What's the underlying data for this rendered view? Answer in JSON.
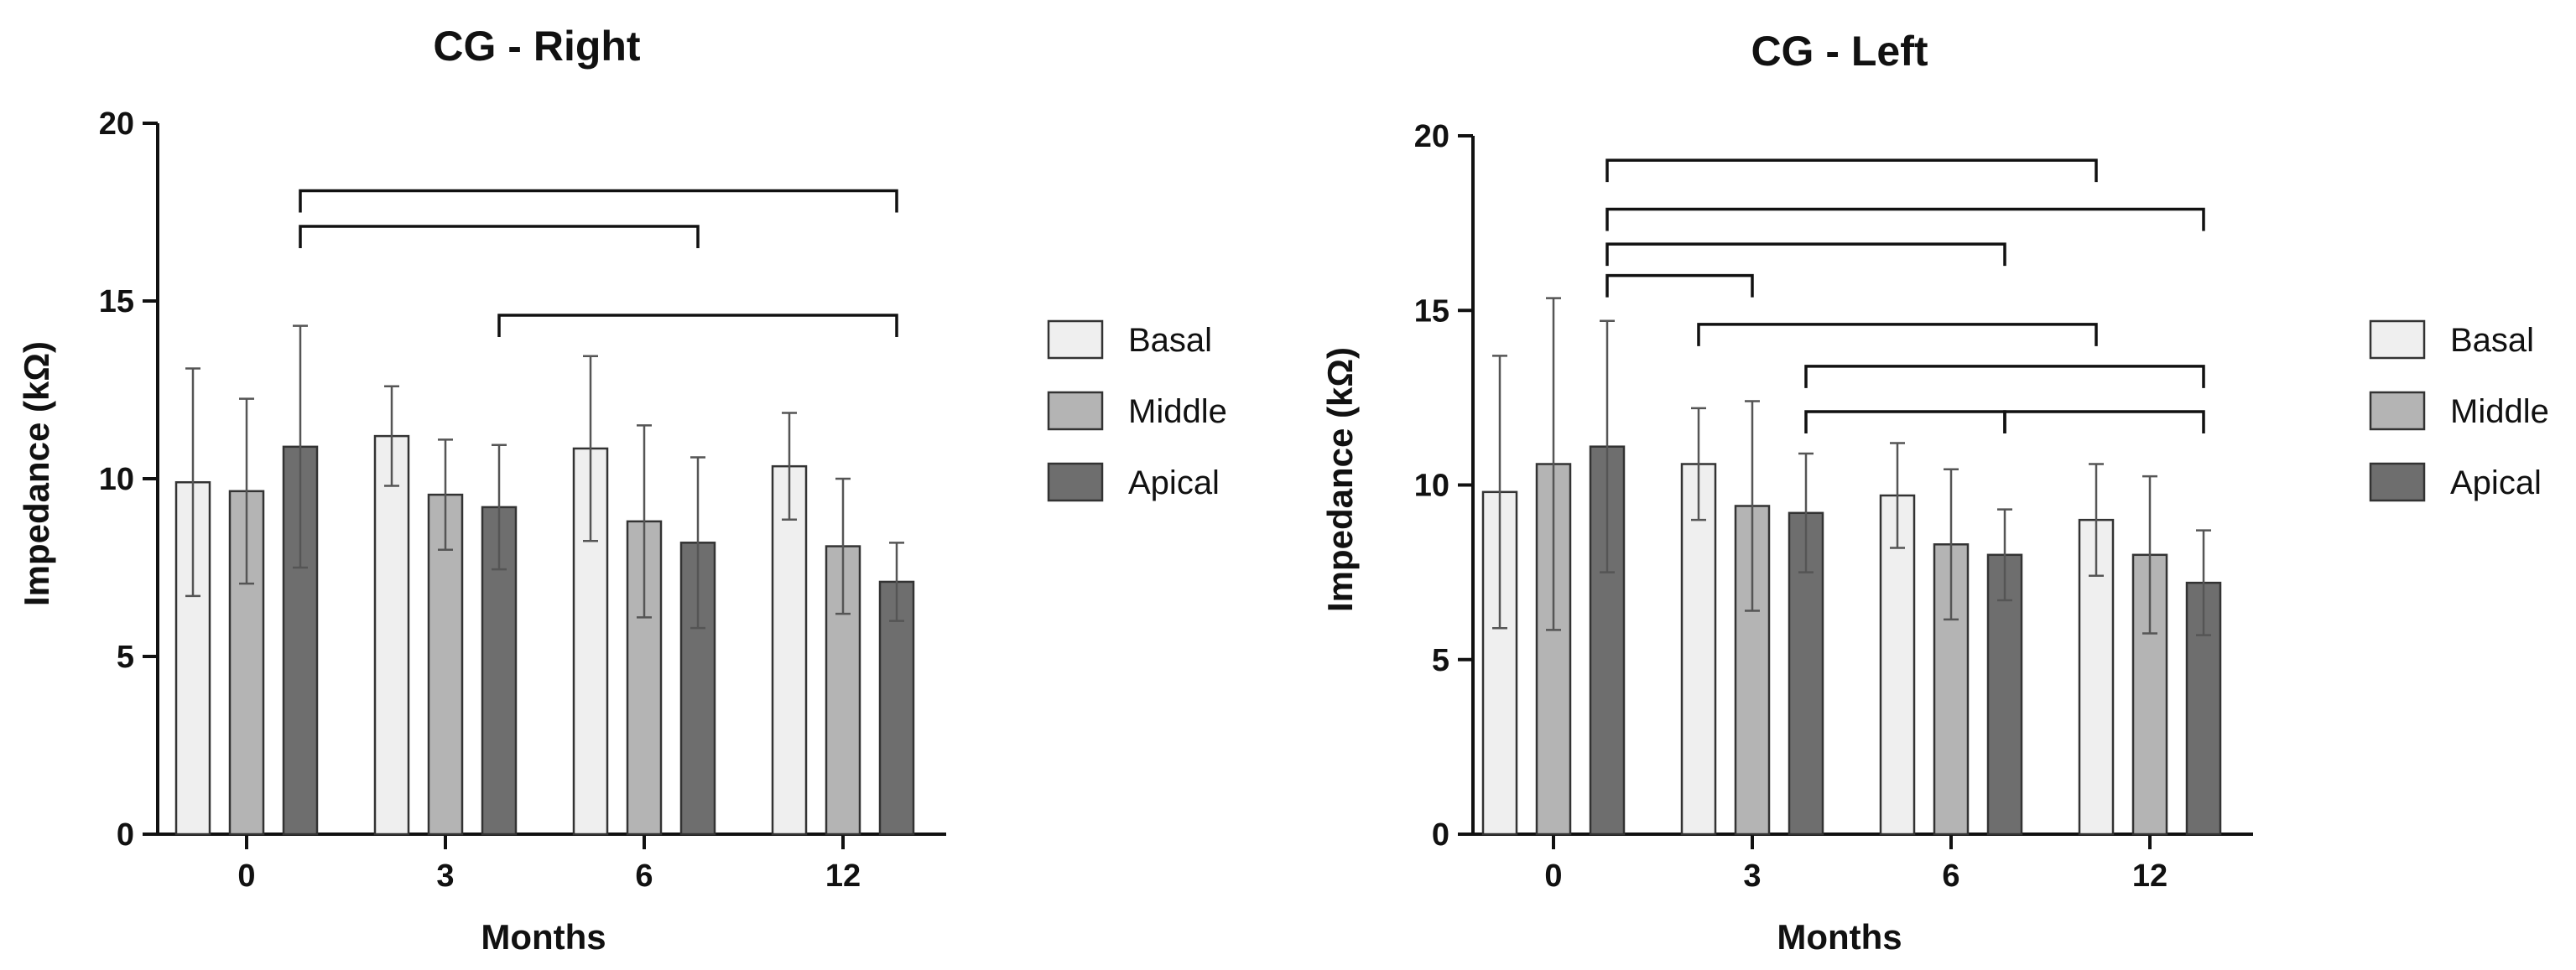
{
  "chart_data": [
    {
      "type": "bar",
      "title": "CG - Right",
      "xlabel": "Months",
      "ylabel": "Impedance (kΩ)",
      "ylim": [
        0,
        20
      ],
      "yticks": [
        0,
        5,
        10,
        15,
        20
      ],
      "categories": [
        "0",
        "3",
        "6",
        "12"
      ],
      "series": [
        {
          "name": "Basal",
          "color": "#efefef",
          "values": [
            9.9,
            11.2,
            10.85,
            10.35
          ],
          "errors": [
            3.2,
            1.4,
            2.6,
            1.5
          ]
        },
        {
          "name": "Middle",
          "color": "#b4b4b4",
          "values": [
            9.65,
            9.55,
            8.8,
            8.1
          ],
          "errors": [
            2.6,
            1.55,
            2.7,
            1.9
          ]
        },
        {
          "name": "Apical",
          "color": "#6e6e6e",
          "values": [
            10.9,
            9.2,
            8.2,
            7.1
          ],
          "errors": [
            3.4,
            1.75,
            2.4,
            1.1
          ]
        }
      ],
      "significance_brackets": [
        {
          "from": [
            "0",
            "Apical"
          ],
          "to": [
            "12",
            "Apical"
          ],
          "y": 18.1
        },
        {
          "from": [
            "0",
            "Apical"
          ],
          "to": [
            "6",
            "Apical"
          ],
          "y": 17.1
        },
        {
          "from": [
            "3",
            "Apical"
          ],
          "to": [
            "12",
            "Apical"
          ],
          "y": 14.6
        }
      ],
      "legend_position": "right"
    },
    {
      "type": "bar",
      "title": "CG - Left",
      "xlabel": "Months",
      "ylabel": "Impedance (kΩ)",
      "ylim": [
        0,
        20
      ],
      "yticks": [
        0,
        5,
        10,
        15,
        20
      ],
      "categories": [
        "0",
        "3",
        "6",
        "12"
      ],
      "series": [
        {
          "name": "Basal",
          "color": "#efefef",
          "values": [
            9.8,
            10.6,
            9.7,
            9.0
          ],
          "errors": [
            3.9,
            1.6,
            1.5,
            1.6
          ]
        },
        {
          "name": "Middle",
          "color": "#b4b4b4",
          "values": [
            10.6,
            9.4,
            8.3,
            8.0
          ],
          "errors": [
            4.75,
            3.0,
            2.15,
            2.25
          ]
        },
        {
          "name": "Apical",
          "color": "#6e6e6e",
          "values": [
            11.1,
            9.2,
            8.0,
            7.2
          ],
          "errors": [
            3.6,
            1.7,
            1.3,
            1.5
          ]
        }
      ],
      "significance_brackets": [
        {
          "from": [
            "0",
            "Apical"
          ],
          "to": [
            "12",
            "Basal"
          ],
          "y": 19.3
        },
        {
          "from": [
            "0",
            "Apical"
          ],
          "to": [
            "12",
            "Apical"
          ],
          "y": 17.9
        },
        {
          "from": [
            "0",
            "Apical"
          ],
          "to": [
            "6",
            "Apical"
          ],
          "y": 16.9
        },
        {
          "from": [
            "0",
            "Apical"
          ],
          "to": [
            "3",
            "Middle"
          ],
          "y": 16.0
        },
        {
          "from": [
            "3",
            "Basal"
          ],
          "to": [
            "12",
            "Basal"
          ],
          "y": 14.6
        },
        {
          "from": [
            "3",
            "Apical"
          ],
          "to": [
            "12",
            "Apical"
          ],
          "y": 13.4
        },
        {
          "from": [
            "3",
            "Apical"
          ],
          "to": [
            "6",
            "Apical"
          ],
          "y": 12.1
        },
        {
          "from": [
            "6",
            "Apical"
          ],
          "to": [
            "12",
            "Apical"
          ],
          "y": 12.1
        }
      ],
      "legend_position": "right"
    }
  ]
}
